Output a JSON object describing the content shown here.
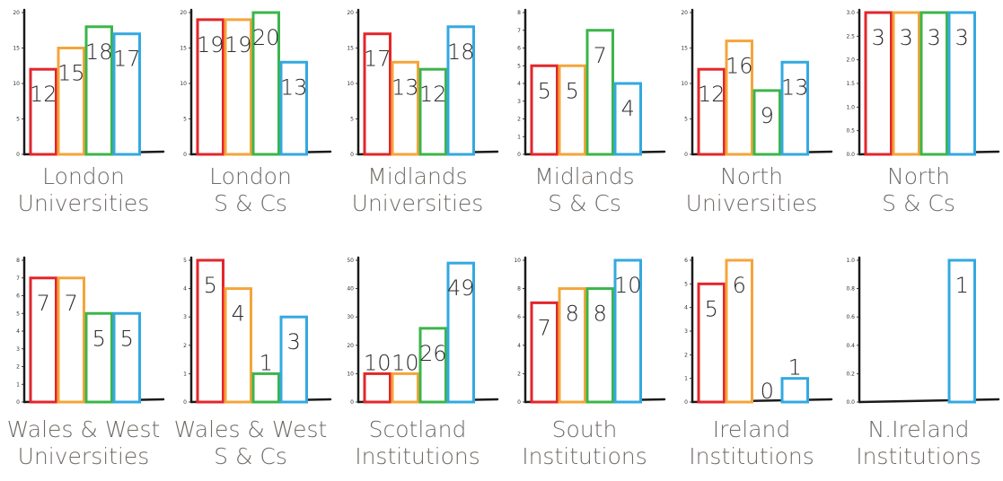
{
  "colors": [
    "#e3262b",
    "#f4a53a",
    "#3bb54a",
    "#33a9e0"
  ],
  "axis_color": "#1a1a1a",
  "caption_color": "#6f6a66",
  "chart_data": [
    {
      "type": "bar",
      "caption": [
        "London",
        "Universities"
      ],
      "values": [
        12,
        15,
        18,
        17
      ],
      "ylim": [
        0,
        20
      ],
      "yticks": [
        0,
        5,
        10,
        15,
        20
      ],
      "ytick_labels": [
        "0",
        "5",
        "10",
        "15",
        "20"
      ],
      "data_labels": [
        "12",
        "15",
        "18",
        "17"
      ]
    },
    {
      "type": "bar",
      "caption": [
        "London",
        "S & Cs"
      ],
      "values": [
        19,
        19,
        20,
        13
      ],
      "ylim": [
        0,
        20
      ],
      "yticks": [
        0,
        5,
        10,
        15,
        20
      ],
      "ytick_labels": [
        "0",
        "5",
        "10",
        "15",
        "20"
      ],
      "data_labels": [
        "19",
        "19",
        "20",
        "13"
      ]
    },
    {
      "type": "bar",
      "caption": [
        "Midlands",
        "Universities"
      ],
      "values": [
        17,
        13,
        12,
        18
      ],
      "ylim": [
        0,
        20
      ],
      "yticks": [
        0,
        5,
        10,
        15,
        20
      ],
      "ytick_labels": [
        "0",
        "5",
        "10",
        "15",
        "20"
      ],
      "data_labels": [
        "17",
        "13",
        "12",
        "18"
      ]
    },
    {
      "type": "bar",
      "caption": [
        "Midlands",
        "S & Cs"
      ],
      "values": [
        5,
        5,
        7,
        4
      ],
      "ylim": [
        0,
        8
      ],
      "yticks": [
        0,
        1,
        2,
        3,
        4,
        5,
        6,
        7,
        8
      ],
      "ytick_labels": [
        "0",
        "1",
        "2",
        "3",
        "4",
        "5",
        "6",
        "7",
        "8"
      ],
      "data_labels": [
        "5",
        "5",
        "7",
        "4"
      ]
    },
    {
      "type": "bar",
      "caption": [
        "North",
        "Universities"
      ],
      "values": [
        12,
        16,
        9,
        13
      ],
      "ylim": [
        0,
        20
      ],
      "yticks": [
        0,
        5,
        10,
        15,
        20
      ],
      "ytick_labels": [
        "0",
        "5",
        "10",
        "15",
        "20"
      ],
      "data_labels": [
        "12",
        "16",
        "9",
        "13"
      ]
    },
    {
      "type": "bar",
      "caption": [
        "North",
        "S & Cs"
      ],
      "values": [
        3,
        3,
        3,
        3
      ],
      "ylim": [
        0,
        3
      ],
      "yticks": [
        0,
        0.5,
        1,
        1.5,
        2,
        2.5,
        3
      ],
      "ytick_labels": [
        "0.0",
        "0.5",
        "1.0",
        "1.5",
        "2.0",
        "2.5",
        "3.0"
      ],
      "data_labels": [
        "3",
        "3",
        "3",
        "3"
      ]
    },
    {
      "type": "bar",
      "caption": [
        "Wales & West",
        "Universities"
      ],
      "values": [
        7,
        7,
        5,
        5
      ],
      "ylim": [
        0,
        8
      ],
      "yticks": [
        0,
        1,
        2,
        3,
        4,
        5,
        6,
        7,
        8
      ],
      "ytick_labels": [
        "0",
        "1",
        "2",
        "3",
        "4",
        "5",
        "6",
        "7",
        "8"
      ],
      "data_labels": [
        "7",
        "7",
        "5",
        "5"
      ]
    },
    {
      "type": "bar",
      "caption": [
        "Wales & West",
        "S & Cs"
      ],
      "values": [
        5,
        4,
        1,
        3
      ],
      "ylim": [
        0,
        5
      ],
      "yticks": [
        0,
        1,
        2,
        3,
        4,
        5
      ],
      "ytick_labels": [
        "0",
        "1",
        "2",
        "3",
        "4",
        "5"
      ],
      "data_labels": [
        "5",
        "4",
        "1",
        "3"
      ]
    },
    {
      "type": "bar",
      "caption": [
        "Scotland",
        "Institutions"
      ],
      "values": [
        10,
        10,
        26,
        49
      ],
      "ylim": [
        0,
        50
      ],
      "yticks": [
        0,
        10,
        20,
        30,
        40,
        50
      ],
      "ytick_labels": [
        "0",
        "10",
        "20",
        "30",
        "40",
        "50"
      ],
      "data_labels": [
        "10",
        "10",
        "26",
        "49"
      ]
    },
    {
      "type": "bar",
      "caption": [
        "South",
        "Institutions"
      ],
      "values": [
        7,
        8,
        8,
        10
      ],
      "ylim": [
        0,
        10
      ],
      "yticks": [
        0,
        2,
        4,
        6,
        8,
        10
      ],
      "ytick_labels": [
        "0",
        "2",
        "4",
        "6",
        "8",
        "10"
      ],
      "data_labels": [
        "7",
        "8",
        "8",
        "10"
      ]
    },
    {
      "type": "bar",
      "caption": [
        "Ireland",
        "Institutions"
      ],
      "values": [
        5,
        6,
        0,
        1
      ],
      "ylim": [
        0,
        6
      ],
      "yticks": [
        0,
        1,
        2,
        3,
        4,
        5,
        6
      ],
      "ytick_labels": [
        "0",
        "1",
        "2",
        "3",
        "4",
        "5",
        "6"
      ],
      "data_labels": [
        "5",
        "6",
        "0",
        "1"
      ]
    },
    {
      "type": "bar",
      "caption": [
        "N.Ireland",
        "Institutions"
      ],
      "values": [
        0,
        0,
        0,
        1
      ],
      "ylim": [
        0,
        1
      ],
      "yticks": [
        0,
        0.2,
        0.4,
        0.6,
        0.8,
        1
      ],
      "ytick_labels": [
        "0.0",
        "0.2",
        "0.4",
        "0.6",
        "0.8",
        "1.0"
      ],
      "data_labels": [
        "",
        "",
        "",
        "1"
      ]
    }
  ]
}
